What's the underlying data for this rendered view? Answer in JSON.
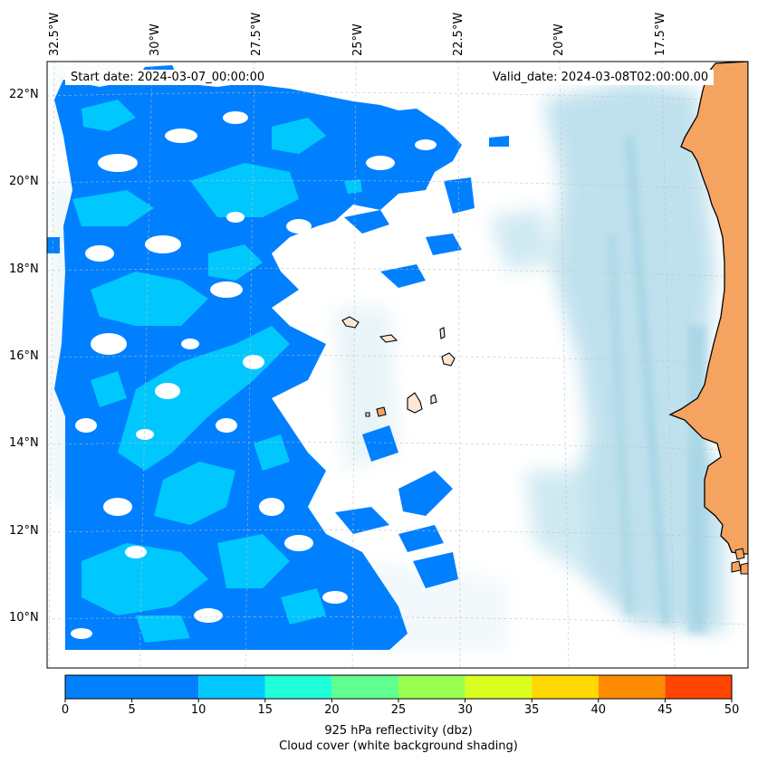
{
  "header": {
    "start_date": "Start date: 2024-03-07_00:00:00",
    "valid_date": "Valid_date: 2024-03-08T02:00:00.00"
  },
  "map": {
    "lon_labels": [
      "32.5°W",
      "30°W",
      "27.5°W",
      "25°W",
      "22.5°W",
      "20°W",
      "17.5°W"
    ],
    "lat_labels": [
      "22°N",
      "20°N",
      "18°N",
      "16°N",
      "14°N",
      "12°N",
      "10°N"
    ],
    "colors": {
      "land": "#f4a460",
      "cloud": "#add8e6",
      "ocean": "#ffffff"
    }
  },
  "colorbar": {
    "ticks": [
      "0",
      "5",
      "10",
      "15",
      "20",
      "25",
      "30",
      "35",
      "40",
      "45",
      "50"
    ],
    "colors": [
      "#0080ff",
      "#00c8ff",
      "#20ffd8",
      "#60ff90",
      "#98ff50",
      "#d8ff20",
      "#ffd800",
      "#ff8c00",
      "#ff4500"
    ],
    "title_line1": "925 hPa reflectivity (dbz)",
    "title_line2": "Cloud cover (white background shading)"
  }
}
